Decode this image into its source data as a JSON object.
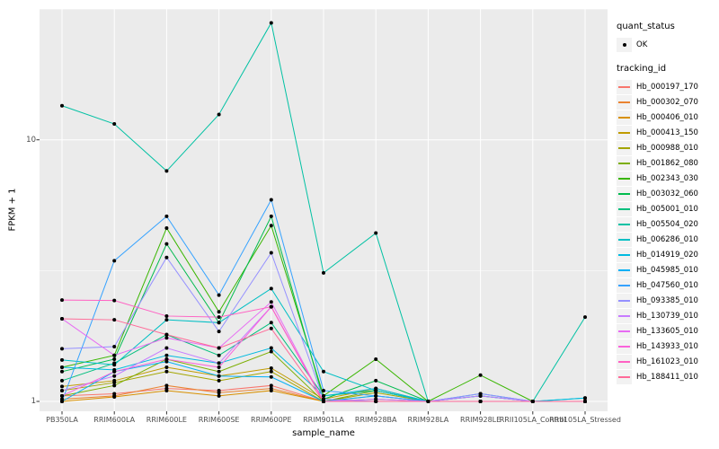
{
  "figure": {
    "xlabel": "sample_name",
    "ylabel": "FPKM + 1"
  },
  "axes": {
    "y_tick_labels": [
      "1",
      "10"
    ],
    "x_tick_labels": [
      "PB350LA",
      "RRIM600LA",
      "RRIM600LE",
      "RRIM600SE",
      "RRIM600PE",
      "RRIM901LA",
      "RRIM928BA",
      "RRIM928LA",
      "RRIM928LE",
      "RRII105LA_Control",
      "RRII105LA_Stressed"
    ]
  },
  "legend": {
    "quant_status_title": "quant_status",
    "quant_status_items": [
      {
        "label": "OK",
        "marker": "black-point"
      }
    ],
    "tracking_id_title": "tracking_id"
  },
  "colors": {
    "panel_bg": "#EBEBEB",
    "grid": "#FFFFFF",
    "axis_text": "#4D4D4D",
    "tick": "#333333",
    "point": "#000000",
    "legend_key_bg": "#F2F2F2"
  },
  "chart_data": {
    "type": "line",
    "title": "",
    "xlabel": "sample_name",
    "ylabel": "FPKM + 1",
    "y_scale": "log10",
    "ylim": [
      0.92,
      30.5
    ],
    "y_major_breaks": [
      1,
      10
    ],
    "y_minor_breaks": [
      3.162,
      31.62
    ],
    "grid": true,
    "legend_position": "right",
    "point_marker": "small black point (quant_status = OK)",
    "categories": [
      "PB350LA",
      "RRIM600LA",
      "RRIM600LE",
      "RRIM600SE",
      "RRIM600PE",
      "RRIM901LA",
      "RRIM928BA",
      "RRIM928LA",
      "RRIM928LE",
      "RRII105LA_Control",
      "RRII105LA_Stressed"
    ],
    "series": [
      {
        "name": "Hb_000197_170",
        "color": "#F8766D",
        "values": [
          1.05,
          1.07,
          1.12,
          1.1,
          1.15,
          1.0,
          1.05,
          1.0,
          1.0,
          1.0,
          1.0
        ]
      },
      {
        "name": "Hb_000302_070",
        "color": "#EA8331",
        "values": [
          1.02,
          1.05,
          1.15,
          1.08,
          1.12,
          1.0,
          1.02,
          1.0,
          1.0,
          1.0,
          1.0
        ]
      },
      {
        "name": "Hb_000406_010",
        "color": "#D89000",
        "values": [
          1.0,
          1.04,
          1.1,
          1.05,
          1.1,
          1.0,
          1.0,
          1.0,
          1.0,
          1.0,
          1.0
        ]
      },
      {
        "name": "Hb_000413_150",
        "color": "#C09B00",
        "values": [
          1.14,
          1.2,
          1.35,
          1.25,
          1.34,
          1.02,
          1.12,
          1.0,
          1.0,
          1.0,
          1.0
        ]
      },
      {
        "name": "Hb_000988_010",
        "color": "#A3A500",
        "values": [
          1.1,
          1.18,
          1.3,
          1.2,
          1.3,
          1.0,
          1.08,
          1.0,
          1.0,
          1.0,
          1.0
        ]
      },
      {
        "name": "Hb_001862_080",
        "color": "#7CAE00",
        "values": [
          1.05,
          1.15,
          1.45,
          1.3,
          1.55,
          1.0,
          1.1,
          1.0,
          1.0,
          1.0,
          1.0
        ]
      },
      {
        "name": "Hb_002343_030",
        "color": "#39B600",
        "values": [
          1.35,
          1.5,
          4.6,
          2.2,
          4.7,
          1.05,
          1.45,
          1.0,
          1.26,
          1.0,
          1.0
        ]
      },
      {
        "name": "Hb_003032_060",
        "color": "#00BB4E",
        "values": [
          1.3,
          1.45,
          4.0,
          2.0,
          5.1,
          1.02,
          1.2,
          1.0,
          1.05,
          1.0,
          1.0
        ]
      },
      {
        "name": "Hb_005001_010",
        "color": "#00BF7D",
        "values": [
          1.2,
          1.4,
          1.8,
          1.5,
          2.0,
          1.05,
          1.1,
          1.0,
          1.0,
          1.0,
          1.0
        ]
      },
      {
        "name": "Hb_005504_020",
        "color": "#00C1A3",
        "values": [
          13.5,
          11.5,
          7.6,
          12.5,
          28.0,
          3.1,
          4.4,
          1.0,
          1.0,
          1.0,
          2.1
        ]
      },
      {
        "name": "Hb_006286_010",
        "color": "#00BFC4",
        "values": [
          1.44,
          1.38,
          2.05,
          2.0,
          2.7,
          1.3,
          1.1,
          1.0,
          1.07,
          1.0,
          1.03
        ]
      },
      {
        "name": "Hb_014919_020",
        "color": "#00BAE0",
        "values": [
          1.35,
          1.32,
          1.5,
          1.4,
          1.6,
          1.05,
          1.12,
          1.0,
          1.05,
          1.0,
          1.03
        ]
      },
      {
        "name": "Hb_045985_010",
        "color": "#00B0F6",
        "values": [
          1.0,
          1.3,
          1.42,
          1.25,
          1.24,
          1.0,
          1.05,
          1.0,
          1.0,
          1.0,
          1.0
        ]
      },
      {
        "name": "Hb_047560_010",
        "color": "#35A2FF",
        "values": [
          1.0,
          3.45,
          5.1,
          2.55,
          5.9,
          1.1,
          1.05,
          1.0,
          1.0,
          1.0,
          1.0
        ]
      },
      {
        "name": "Hb_093385_010",
        "color": "#9590FF",
        "values": [
          1.59,
          1.62,
          3.55,
          1.85,
          3.7,
          1.02,
          1.0,
          1.0,
          1.07,
          1.0,
          1.0
        ]
      },
      {
        "name": "Hb_130739_010",
        "color": "#C77CFF",
        "values": [
          1.1,
          1.25,
          1.6,
          1.4,
          2.3,
          1.0,
          1.02,
          1.0,
          1.05,
          1.0,
          1.0
        ]
      },
      {
        "name": "Hb_133605_010",
        "color": "#E76BF3",
        "values": [
          2.07,
          1.5,
          1.75,
          1.6,
          2.4,
          1.0,
          1.0,
          1.0,
          1.0,
          1.0,
          1.0
        ]
      },
      {
        "name": "Hb_143933_010",
        "color": "#FA62DB",
        "values": [
          1.05,
          1.3,
          1.45,
          1.35,
          2.3,
          1.0,
          1.0,
          1.0,
          1.0,
          1.0,
          1.0
        ]
      },
      {
        "name": "Hb_161023_010",
        "color": "#FF61C3",
        "values": [
          2.44,
          2.43,
          2.12,
          2.1,
          2.3,
          1.0,
          1.0,
          1.0,
          1.0,
          1.0,
          1.0
        ]
      },
      {
        "name": "Hb_188411_010",
        "color": "#FF6A98",
        "values": [
          2.07,
          2.05,
          1.8,
          1.6,
          1.9,
          1.0,
          1.0,
          1.0,
          1.0,
          1.0,
          1.0
        ]
      }
    ]
  }
}
